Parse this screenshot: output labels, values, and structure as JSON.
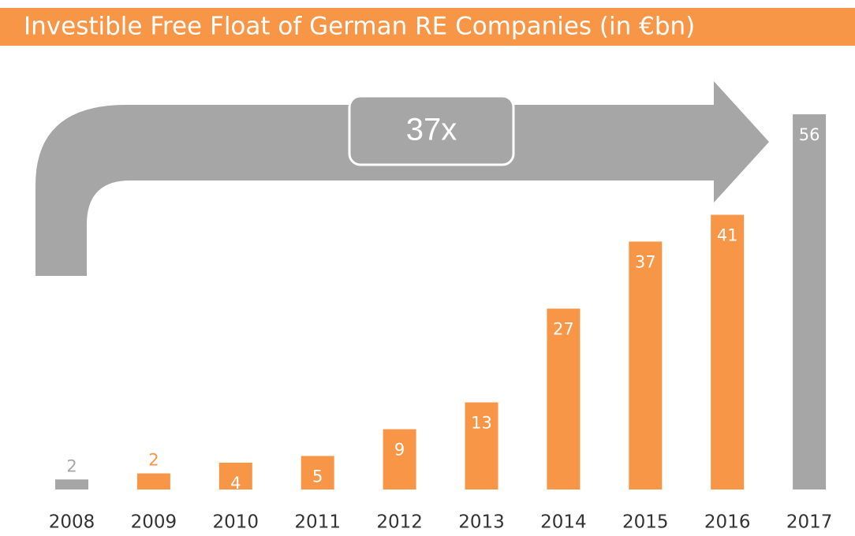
{
  "chart_data": {
    "type": "bar",
    "title": "Investible Free Float of German RE Companies (in €bn)",
    "annotation": "37x",
    "categories": [
      "2008",
      "2009",
      "2010",
      "2011",
      "2012",
      "2013",
      "2014",
      "2015",
      "2016",
      "2017"
    ],
    "values": [
      1.5,
      2.4,
      4,
      5,
      9,
      13,
      27,
      37,
      41,
      56
    ],
    "value_labels": [
      "2",
      "2",
      "4",
      "5",
      "9",
      "13",
      "27",
      "37",
      "41",
      "56"
    ],
    "colors": [
      "#a6a6a6",
      "#f79646",
      "#f79646",
      "#f79646",
      "#f79646",
      "#f79646",
      "#f79646",
      "#f79646",
      "#f79646",
      "#a6a6a6"
    ]
  }
}
